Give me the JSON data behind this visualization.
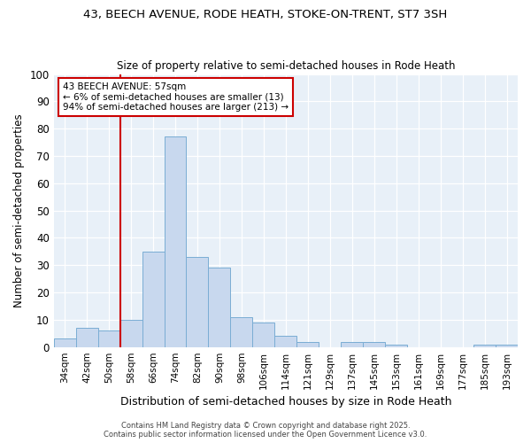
{
  "title1": "43, BEECH AVENUE, RODE HEATH, STOKE-ON-TRENT, ST7 3SH",
  "title2": "Size of property relative to semi-detached houses in Rode Heath",
  "xlabel": "Distribution of semi-detached houses by size in Rode Heath",
  "ylabel": "Number of semi-detached properties",
  "categories": [
    "34sqm",
    "42sqm",
    "50sqm",
    "58sqm",
    "66sqm",
    "74sqm",
    "82sqm",
    "90sqm",
    "98sqm",
    "106sqm",
    "114sqm",
    "121sqm",
    "129sqm",
    "137sqm",
    "145sqm",
    "153sqm",
    "161sqm",
    "169sqm",
    "177sqm",
    "185sqm",
    "193sqm"
  ],
  "values": [
    3,
    7,
    6,
    10,
    35,
    77,
    33,
    29,
    11,
    9,
    4,
    2,
    0,
    2,
    2,
    1,
    0,
    0,
    0,
    1,
    1
  ],
  "bar_color": "#c8d8ee",
  "bar_edge_color": "#7aadd4",
  "annotation_text": "43 BEECH AVENUE: 57sqm\n← 6% of semi-detached houses are smaller (13)\n94% of semi-detached houses are larger (213) →",
  "annotation_box_color": "#ffffff",
  "annotation_box_edge": "#cc0000",
  "vline_color": "#cc0000",
  "vline_x_index": 3,
  "ylim": [
    0,
    100
  ],
  "yticks": [
    0,
    10,
    20,
    30,
    40,
    50,
    60,
    70,
    80,
    90,
    100
  ],
  "bg_color": "#e8f0f8",
  "grid_color": "#ffffff",
  "fig_bg": "#ffffff",
  "footer1": "Contains HM Land Registry data © Crown copyright and database right 2025.",
  "footer2": "Contains public sector information licensed under the Open Government Licence v3.0."
}
